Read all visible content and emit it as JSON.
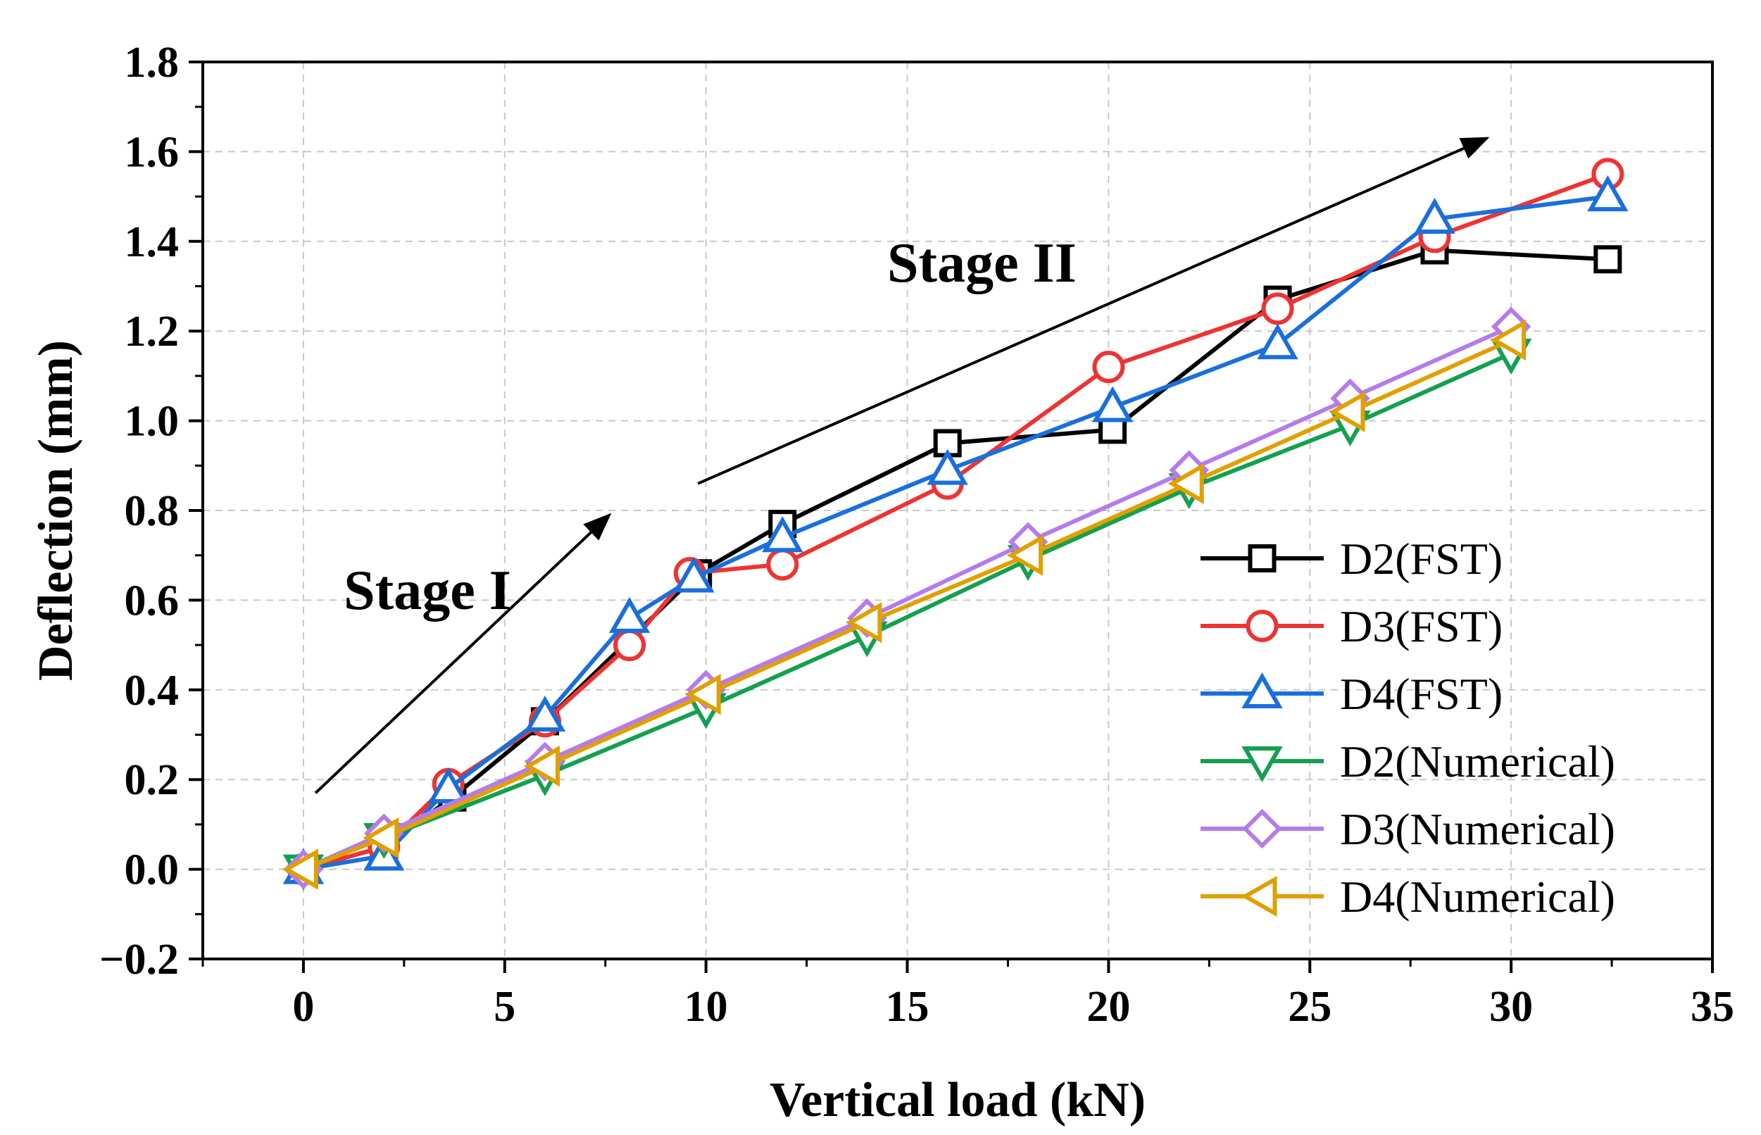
{
  "chart_data": {
    "type": "line",
    "xlabel": "Vertical load (kN)",
    "ylabel": "Deflection (mm)",
    "xlim": [
      -2.5,
      35
    ],
    "ylim": [
      -0.2,
      1.8
    ],
    "xticks": [
      0,
      5,
      10,
      15,
      20,
      25,
      30,
      35
    ],
    "xtick_labels": [
      "0",
      "5",
      "10",
      "15",
      "20",
      "25",
      "30",
      "35"
    ],
    "yticks": [
      -0.2,
      0.0,
      0.2,
      0.4,
      0.6,
      0.8,
      1.0,
      1.2,
      1.4,
      1.6,
      1.8
    ],
    "ytick_labels": [
      "−0.2",
      "0.0",
      "0.2",
      "0.4",
      "0.6",
      "0.8",
      "1.0",
      "1.2",
      "1.4",
      "1.6",
      "1.8"
    ],
    "grid": true,
    "legend_position": "bottom-right",
    "series": [
      {
        "name": "D2(FST)",
        "color": "#000000",
        "marker": "square",
        "x": [
          0,
          2,
          3.7,
          6,
          9.8,
          11.9,
          16,
          20.1,
          24.2,
          28.1,
          32.4
        ],
        "y": [
          0.0,
          0.05,
          0.16,
          0.33,
          0.66,
          0.77,
          0.95,
          0.98,
          1.27,
          1.38,
          1.36
        ]
      },
      {
        "name": "D3(FST)",
        "color": "#EE3333",
        "marker": "circle",
        "x": [
          0,
          2,
          3.6,
          6,
          8.1,
          9.6,
          11.9,
          16,
          20,
          24.2,
          28.1,
          32.4
        ],
        "y": [
          0.0,
          0.05,
          0.19,
          0.33,
          0.5,
          0.66,
          0.68,
          0.86,
          1.12,
          1.25,
          1.41,
          1.55
        ]
      },
      {
        "name": "D4(FST)",
        "color": "#1A6FDB",
        "marker": "triangle-up",
        "x": [
          0,
          2,
          3.6,
          6,
          8.1,
          9.7,
          11.9,
          16,
          20.1,
          24.2,
          28.1,
          32.4
        ],
        "y": [
          0.0,
          0.03,
          0.18,
          0.34,
          0.56,
          0.65,
          0.74,
          0.89,
          1.03,
          1.17,
          1.45,
          1.5
        ]
      },
      {
        "name": "D2(Numerical)",
        "color": "#14A050",
        "marker": "triangle-down",
        "x": [
          0,
          2,
          6,
          10,
          14,
          18,
          22,
          26,
          30
        ],
        "y": [
          0.0,
          0.07,
          0.21,
          0.36,
          0.52,
          0.69,
          0.85,
          0.99,
          1.15
        ]
      },
      {
        "name": "D3(Numerical)",
        "color": "#B57BEB",
        "marker": "diamond",
        "x": [
          0,
          2,
          6,
          10,
          14,
          18,
          22,
          26,
          30
        ],
        "y": [
          0.0,
          0.08,
          0.24,
          0.4,
          0.56,
          0.73,
          0.89,
          1.05,
          1.21
        ]
      },
      {
        "name": "D4(Numerical)",
        "color": "#E0A000",
        "marker": "triangle-left",
        "x": [
          0,
          2,
          6,
          10,
          14,
          18,
          22,
          26,
          30
        ],
        "y": [
          0.0,
          0.07,
          0.23,
          0.39,
          0.55,
          0.7,
          0.86,
          1.02,
          1.18
        ]
      }
    ],
    "annotations": [
      {
        "text": "Stage I",
        "x": 1.0,
        "y": 0.58
      },
      {
        "text": "Stage II",
        "x": 14.5,
        "y": 1.31
      }
    ],
    "arrows": [
      {
        "from": [
          0.3,
          0.17
        ],
        "to": [
          7.6,
          0.79
        ]
      },
      {
        "from": [
          9.8,
          0.86
        ],
        "to": [
          29.4,
          1.63
        ]
      }
    ]
  }
}
